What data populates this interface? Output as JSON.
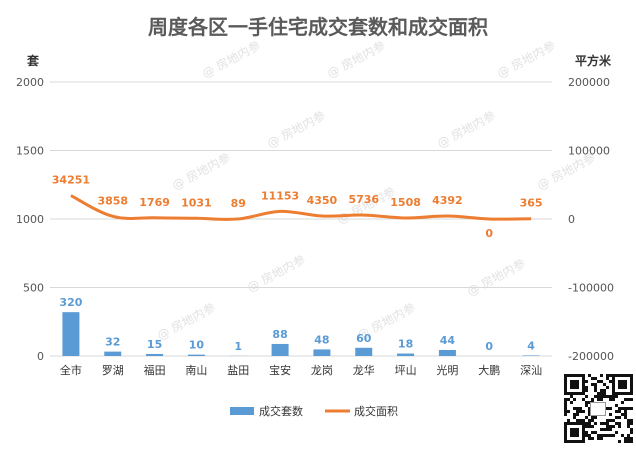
{
  "chart_data": {
    "type": "bar+line",
    "title": "周度各区一手住宅成交套数和成交面积",
    "ylabel_left": "套",
    "ylabel_right": "平方米",
    "ylim_left": [
      0,
      2000
    ],
    "ylim_right": [
      -200000,
      200000
    ],
    "yticks_left": [
      0,
      500,
      1000,
      1500,
      2000
    ],
    "yticks_right": [
      -200000,
      -100000,
      0,
      100000,
      200000
    ],
    "categories": [
      "全市",
      "罗湖",
      "福田",
      "南山",
      "盐田",
      "宝安",
      "龙岗",
      "龙华",
      "坪山",
      "光明",
      "大鹏",
      "深汕"
    ],
    "series": [
      {
        "name": "成交套数",
        "type": "bar",
        "axis": "left",
        "color": "#5b9bd5",
        "values": [
          320,
          32,
          15,
          10,
          1,
          88,
          48,
          60,
          18,
          44,
          0,
          4
        ]
      },
      {
        "name": "成交面积",
        "type": "line",
        "axis": "right",
        "color": "#ed7d31",
        "values": [
          34251,
          3858,
          1769,
          1031,
          89,
          11153,
          4350,
          5736,
          1508,
          4392,
          0,
          365
        ]
      }
    ],
    "legend_position": "bottom",
    "grid": true
  },
  "watermark": "@ 房地内参",
  "qr_icon": "qr-code-icon"
}
